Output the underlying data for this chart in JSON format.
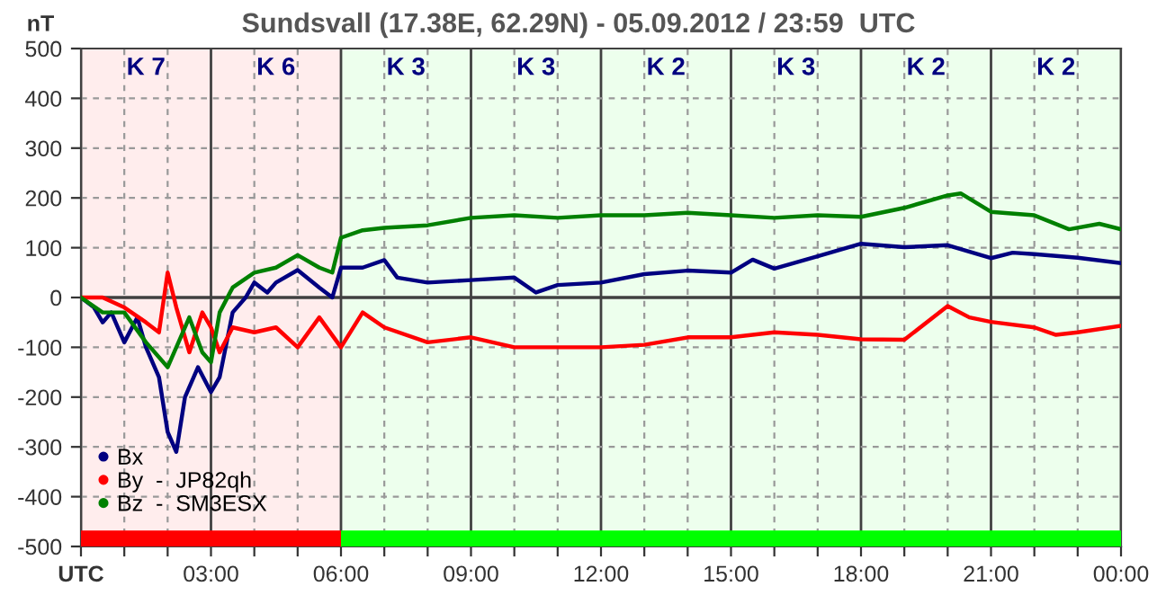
{
  "chart_data": {
    "type": "line",
    "title": "Sundsvall (17.38E, 62.29N) - 05.09.2012 / 23:59  UTC",
    "ylabel": "nT",
    "xlim": [
      0,
      24
    ],
    "ylim": [
      -500,
      500
    ],
    "xticks": [
      {
        "value": 0,
        "label": "UTC"
      },
      {
        "value": 1,
        "label": null
      },
      {
        "value": 2,
        "label": null
      },
      {
        "value": 3,
        "label": "03:00"
      },
      {
        "value": 4,
        "label": null
      },
      {
        "value": 5,
        "label": null
      },
      {
        "value": 6,
        "label": "06:00"
      },
      {
        "value": 7,
        "label": null
      },
      {
        "value": 8,
        "label": null
      },
      {
        "value": 9,
        "label": "09:00"
      },
      {
        "value": 10,
        "label": null
      },
      {
        "value": 11,
        "label": null
      },
      {
        "value": 12,
        "label": "12:00"
      },
      {
        "value": 13,
        "label": null
      },
      {
        "value": 14,
        "label": null
      },
      {
        "value": 15,
        "label": "15:00"
      },
      {
        "value": 16,
        "label": null
      },
      {
        "value": 17,
        "label": null
      },
      {
        "value": 18,
        "label": "18:00"
      },
      {
        "value": 19,
        "label": null
      },
      {
        "value": 20,
        "label": null
      },
      {
        "value": 21,
        "label": "21:00"
      },
      {
        "value": 22,
        "label": null
      },
      {
        "value": 23,
        "label": null
      },
      {
        "value": 24,
        "label": "00:00"
      }
    ],
    "yticks": [
      -500,
      -400,
      -300,
      -200,
      -100,
      0,
      100,
      200,
      300,
      400,
      500
    ],
    "grid": true,
    "legend": "bottom left",
    "marker": "none",
    "line_style": "solid",
    "ref_lines": [
      {
        "axis": "y",
        "value": 0,
        "color": "#404040"
      }
    ],
    "bands": [
      {
        "axis": "x",
        "from": 0,
        "to": 6,
        "color": "#ff0000"
      },
      {
        "axis": "x",
        "from": 6,
        "to": 18,
        "color": "#00ff00"
      },
      {
        "axis": "x",
        "from": 18,
        "to": 24,
        "color": "#00ff00"
      }
    ],
    "annotations": [
      "K 7",
      "K 6",
      "K 3",
      "K 3",
      "K 2",
      "K 3",
      "K 2",
      "K 2"
    ],
    "series": [
      {
        "name": "Bx",
        "color": "#000080",
        "x": [
          0,
          0.3,
          0.5,
          0.7,
          1.0,
          1.3,
          1.5,
          1.8,
          2.0,
          2.2,
          2.4,
          2.7,
          3.0,
          3.2,
          3.5,
          3.8,
          4.0,
          4.3,
          4.5,
          5.0,
          5.5,
          5.8,
          6.0,
          6.5,
          7.0,
          7.3,
          8,
          9,
          10,
          10.5,
          11,
          12,
          13,
          14,
          15,
          15.5,
          16,
          17,
          18,
          19,
          20,
          21,
          21.5,
          22,
          23,
          24
        ],
        "values": [
          0,
          -20,
          -50,
          -30,
          -90,
          -40,
          -100,
          -160,
          -270,
          -310,
          -200,
          -140,
          -190,
          -160,
          -30,
          0,
          30,
          10,
          30,
          55,
          20,
          0,
          60,
          60,
          75,
          40,
          30,
          35,
          40,
          10,
          25,
          30,
          47,
          54,
          50,
          76,
          58,
          83,
          108,
          101,
          105,
          79,
          90,
          87,
          80,
          69
        ]
      },
      {
        "name": "By  -  JP82qh",
        "color": "#ff0000",
        "x": [
          0,
          0.5,
          1,
          1.5,
          1.8,
          2,
          2.2,
          2.5,
          2.8,
          3,
          3.2,
          3.5,
          4,
          4.5,
          5,
          5.5,
          6,
          6.5,
          7,
          8,
          9,
          10,
          11,
          12,
          13,
          14,
          15,
          16,
          17,
          18,
          19,
          20,
          20.5,
          21,
          22,
          22.5,
          23,
          24
        ],
        "values": [
          0,
          0,
          -20,
          -50,
          -70,
          50,
          -20,
          -110,
          -30,
          -60,
          -110,
          -60,
          -70,
          -60,
          -100,
          -40,
          -100,
          -30,
          -60,
          -90,
          -80,
          -100,
          -100,
          -100,
          -95,
          -80,
          -80,
          -70,
          -75,
          -84,
          -85,
          -17,
          -40,
          -49,
          -60,
          -75,
          -70,
          -57
        ]
      },
      {
        "name": "Bz  -  SM3ESX",
        "color": "#008000",
        "x": [
          0,
          0.5,
          1,
          1.5,
          2,
          2.3,
          2.5,
          2.8,
          3.0,
          3.2,
          3.5,
          4,
          4.5,
          5,
          5.5,
          5.8,
          6,
          6.5,
          7,
          8,
          9,
          10,
          11,
          12,
          13,
          14,
          15,
          16,
          17,
          18,
          19,
          20,
          20.3,
          21,
          22,
          22.8,
          23.5,
          24
        ],
        "values": [
          0,
          -30,
          -30,
          -90,
          -140,
          -80,
          -40,
          -110,
          -130,
          -30,
          20,
          50,
          60,
          85,
          60,
          50,
          120,
          135,
          140,
          145,
          160,
          165,
          160,
          165,
          165,
          170,
          165,
          160,
          165,
          162,
          180,
          205,
          209,
          172,
          165,
          137,
          148,
          137
        ]
      }
    ]
  }
}
